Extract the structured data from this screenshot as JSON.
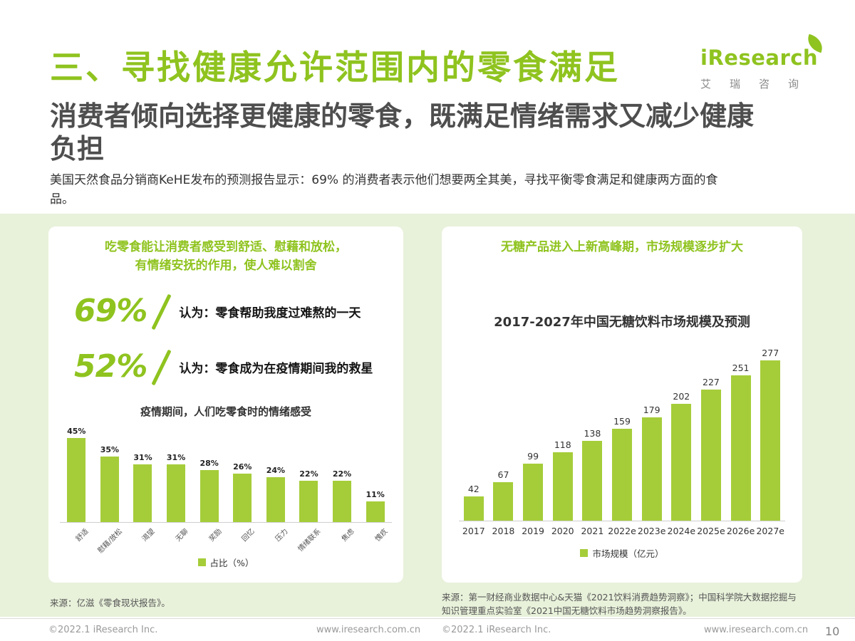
{
  "page": {
    "title": "三、寻找健康允许范围内的零食满足",
    "subtitle": "消费者倾向选择更健康的零食，既满足情绪需求又减少健康负担",
    "intro": "美国天然食品分销商KeHE发布的预测报告显示：69% 的消费者表示他们想要两全其美，寻找平衡零食满足和健康两方面的食品。",
    "page_number": "10"
  },
  "logo": {
    "brand": "iResearch",
    "brand_cn": "艾瑞咨询"
  },
  "left_panel": {
    "heading_line1": "吃零食能让消费者感受到舒适、慰藉和放松，",
    "heading_line2": "有情绪安抚的作用，使人难以割舍",
    "stats": [
      {
        "value": "69%",
        "label": "认为：零食帮助我度过难熬的一天"
      },
      {
        "value": "52%",
        "label": "认为：零食成为在疫情期间我的救星"
      }
    ],
    "source": "来源：亿滋《零食现状报告》。"
  },
  "right_panel": {
    "heading": "无糖产品进入上新高峰期，市场规模逐步扩大",
    "source": "来源：第一财经商业数据中心&天猫《2021饮料消费趋势洞察》；中国科学院大数据挖掘与知识管理重点实验室《2021中国无糖饮料市场趋势洞察报告》。"
  },
  "footer": {
    "copyright": "©2022.1 iResearch Inc.",
    "website": "www.iresearch.com.cn"
  },
  "colors": {
    "accent_green": "#8fc31f",
    "bar_green": "#a5cd39",
    "band_background": "#e8f1da"
  },
  "chart_data": [
    {
      "type": "bar",
      "title": "疫情期间，人们吃零食时的情绪感受",
      "categories": [
        "舒适",
        "慰藉/放松",
        "渴望",
        "无聊",
        "奖励",
        "回忆",
        "压力",
        "情绪联系",
        "焦虑",
        "愧疚"
      ],
      "values": [
        45,
        35,
        31,
        31,
        28,
        26,
        24,
        22,
        22,
        11
      ],
      "value_suffix": "%",
      "legend": "占比（%）",
      "ylabel": "",
      "xlabel": "",
      "ylim": [
        0,
        50
      ],
      "grid": false,
      "legend_position": "bottom"
    },
    {
      "type": "bar",
      "title": "2017-2027年中国无糖饮料市场规模及预测",
      "categories": [
        "2017",
        "2018",
        "2019",
        "2020",
        "2021",
        "2022e",
        "2023e",
        "2024e",
        "2025e",
        "2026e",
        "2027e"
      ],
      "values": [
        42,
        67,
        99,
        118,
        138,
        159,
        179,
        202,
        227,
        251,
        277
      ],
      "value_suffix": "",
      "legend": "市场规模（亿元）",
      "ylabel": "",
      "xlabel": "",
      "ylim": [
        0,
        300
      ],
      "grid": false,
      "legend_position": "bottom"
    }
  ]
}
